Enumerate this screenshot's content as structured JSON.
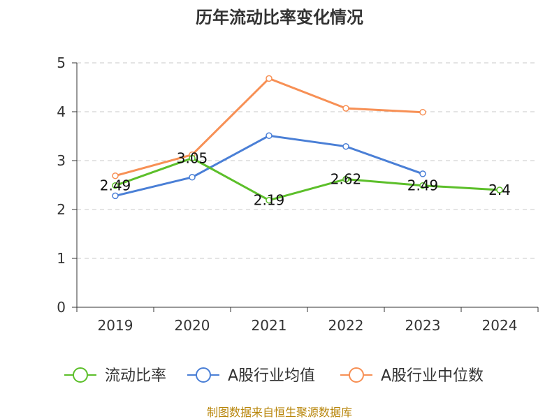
{
  "chart_data": {
    "type": "line",
    "title": "历年流动比率变化情况",
    "categories": [
      "2019",
      "2020",
      "2021",
      "2022",
      "2023",
      "2024"
    ],
    "ylim": [
      0,
      5
    ],
    "yticks": [
      "0",
      "1",
      "2",
      "3",
      "4",
      "5"
    ],
    "grid": true,
    "legend_position": "bottom",
    "series": [
      {
        "name": "流动比率",
        "color": "#5cbf2a",
        "values": [
          2.49,
          3.05,
          2.19,
          2.62,
          2.49,
          2.4
        ],
        "data_labels": [
          "2.49",
          "3.05",
          "2.19",
          "2.62",
          "2.49",
          "2.4"
        ]
      },
      {
        "name": "A股行业均值",
        "color": "#4a7fd6",
        "values": [
          2.28,
          2.66,
          3.51,
          3.29,
          2.73,
          null
        ]
      },
      {
        "name": "A股行业中位数",
        "color": "#f79055",
        "values": [
          2.69,
          3.12,
          4.68,
          4.07,
          3.99,
          null
        ]
      }
    ]
  },
  "source_text": "制图数据来自恒生聚源数据库"
}
